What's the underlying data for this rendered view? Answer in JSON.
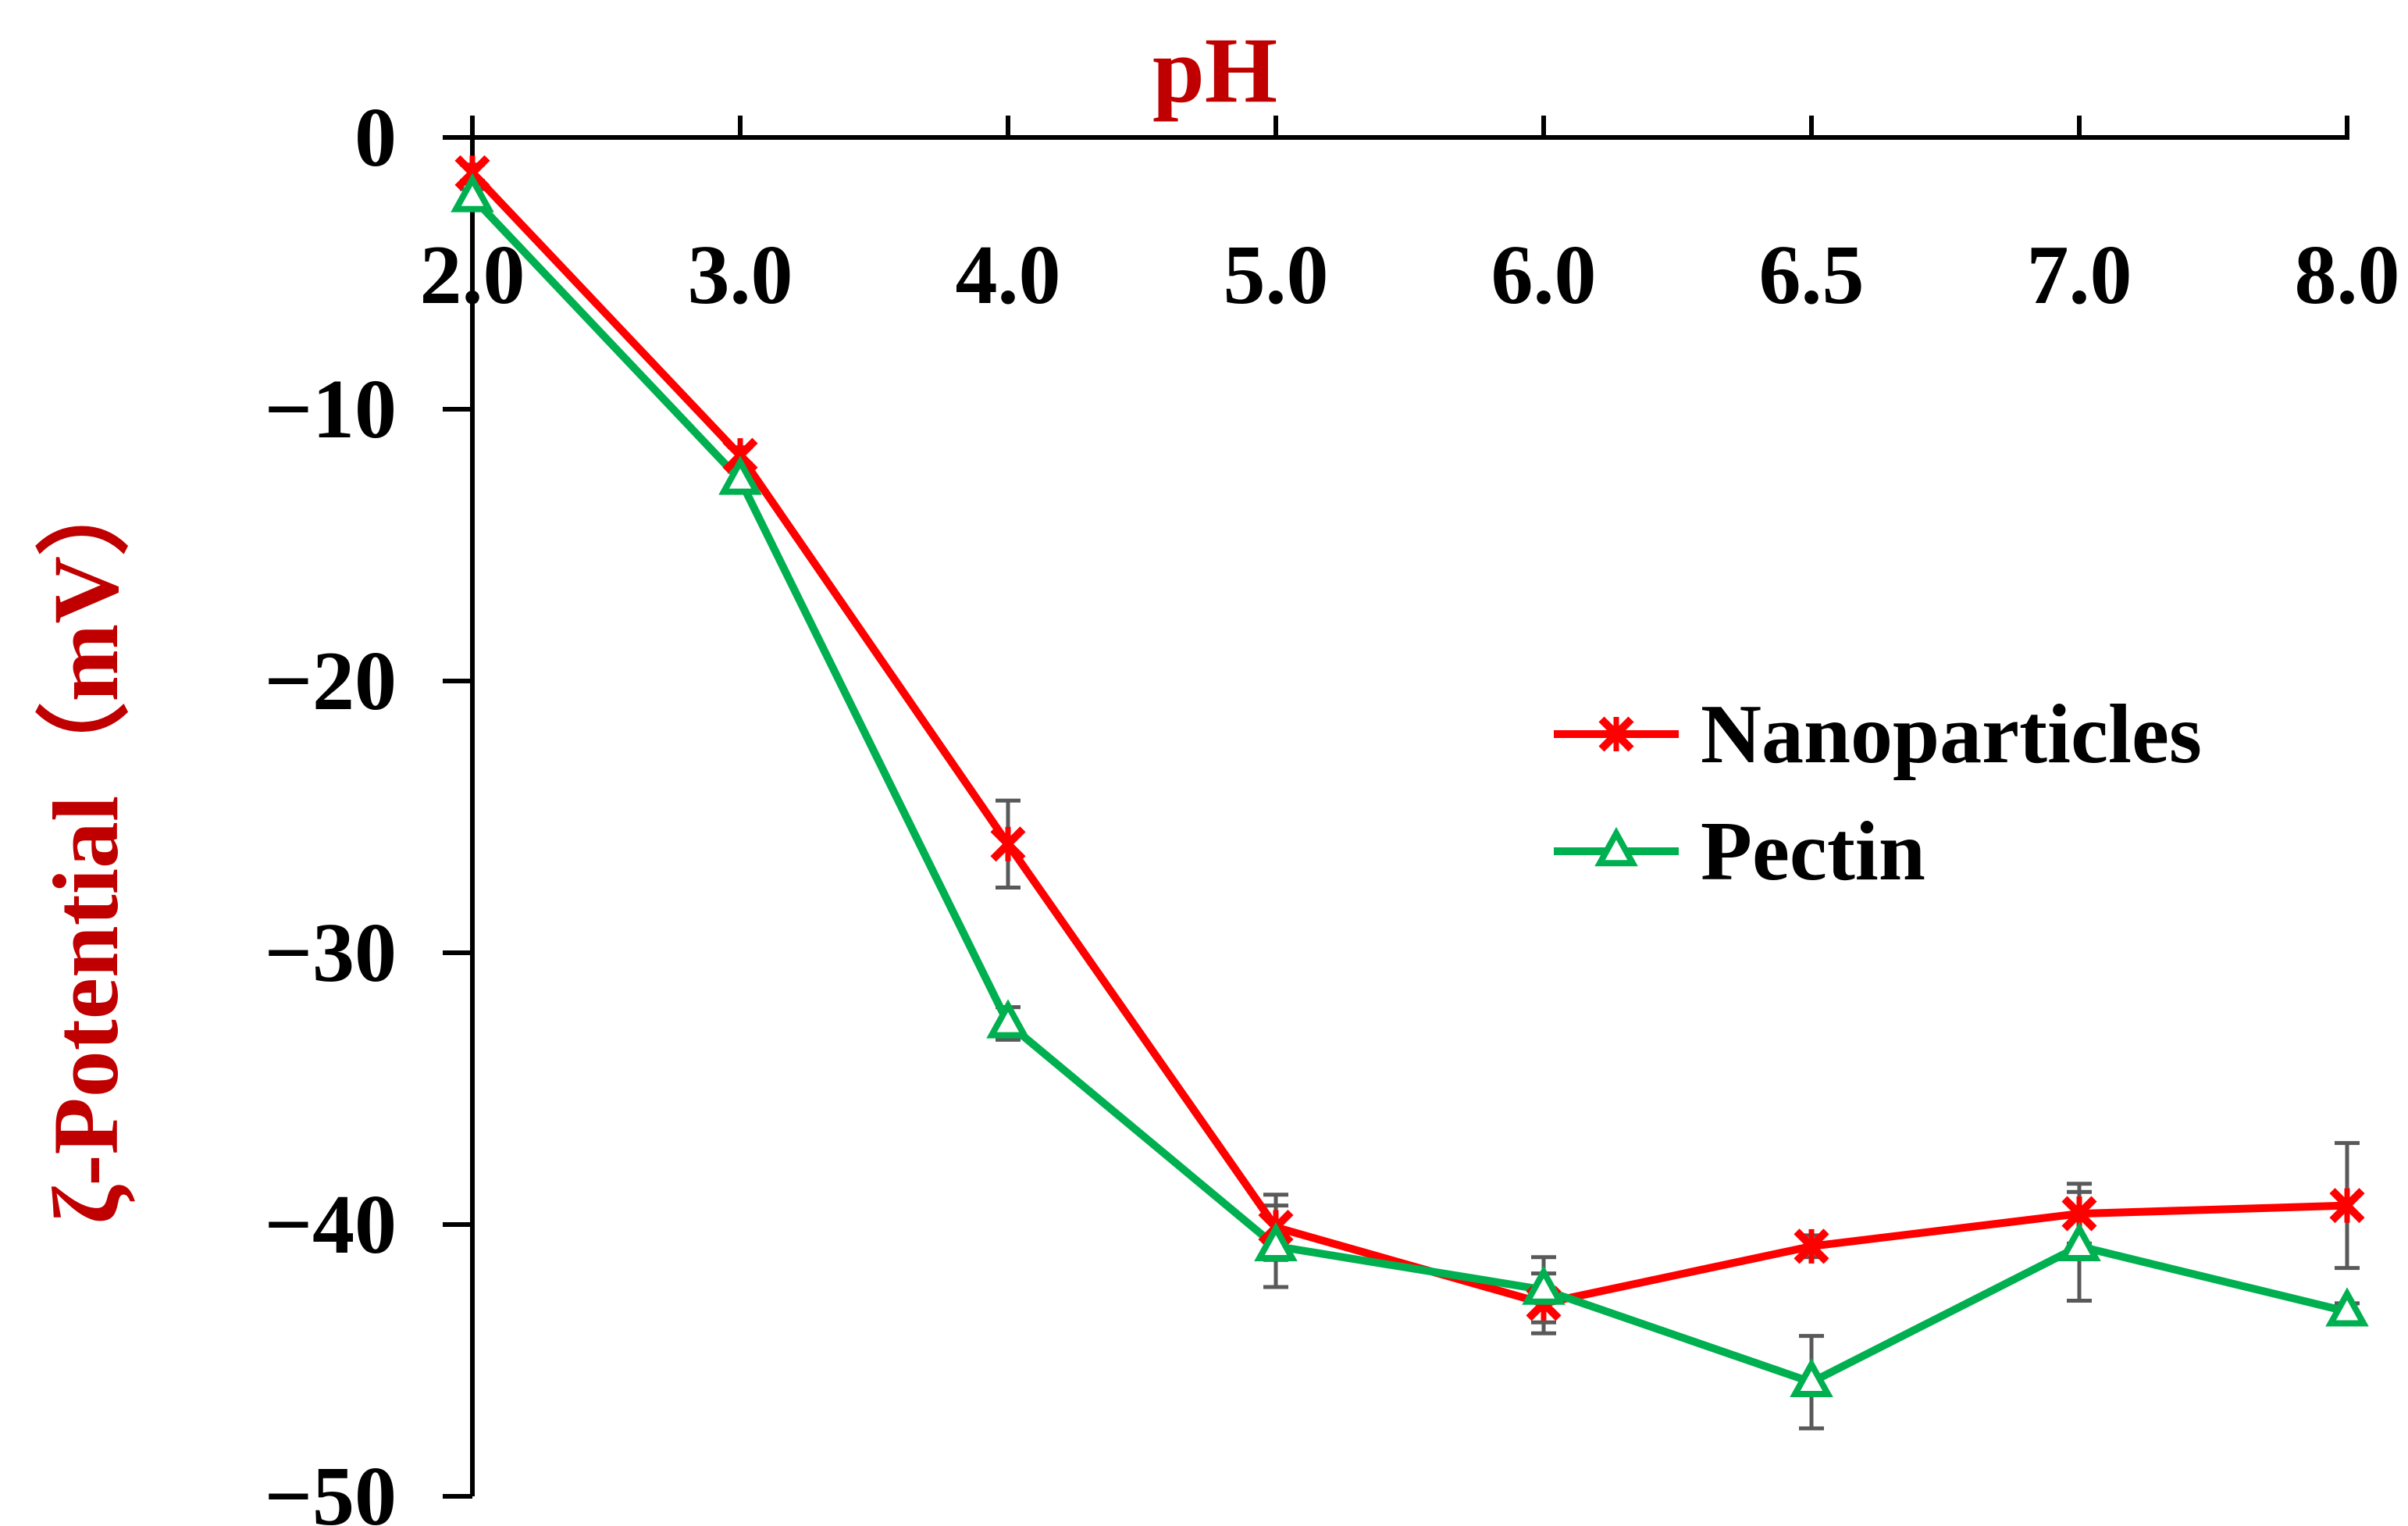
{
  "chart_data": {
    "type": "line",
    "title": "",
    "xlabel": "pH",
    "ylabel": "ζ-Potential（mV）",
    "categories": [
      "2.0",
      "3.0",
      "4.0",
      "5.0",
      "6.0",
      "6.5",
      "7.0",
      "8.0"
    ],
    "ylim": [
      -50,
      0
    ],
    "yticks": [
      0,
      -10,
      -20,
      -30,
      -40,
      -50
    ],
    "ytick_labels": [
      "0",
      "−10",
      "−20",
      "−30",
      "−40",
      "−50"
    ],
    "x_axis_position": "top",
    "grid": false,
    "legend_position": "right-center",
    "series": [
      {
        "name": "Nanoparticles",
        "marker": "x",
        "color": "#ff0000",
        "values": [
          -1.3,
          -11.7,
          -26.0,
          -40.1,
          -42.9,
          -40.8,
          -39.6,
          -39.3
        ],
        "errors": [
          0.3,
          0.3,
          1.6,
          1.2,
          1.1,
          0.4,
          1.1,
          2.3
        ]
      },
      {
        "name": "Pectin",
        "marker": "triangle",
        "color": "#00b050",
        "values": [
          -2.2,
          -12.6,
          -32.6,
          -40.8,
          -42.4,
          -45.8,
          -40.8,
          -43.2
        ],
        "errors": [
          0.3,
          0.3,
          0.6,
          1.5,
          1.2,
          1.7,
          2.0,
          0.3
        ]
      }
    ]
  },
  "colors": {
    "axis": "#000000",
    "axis_title": "#c00000",
    "error_bar": "#595959"
  }
}
